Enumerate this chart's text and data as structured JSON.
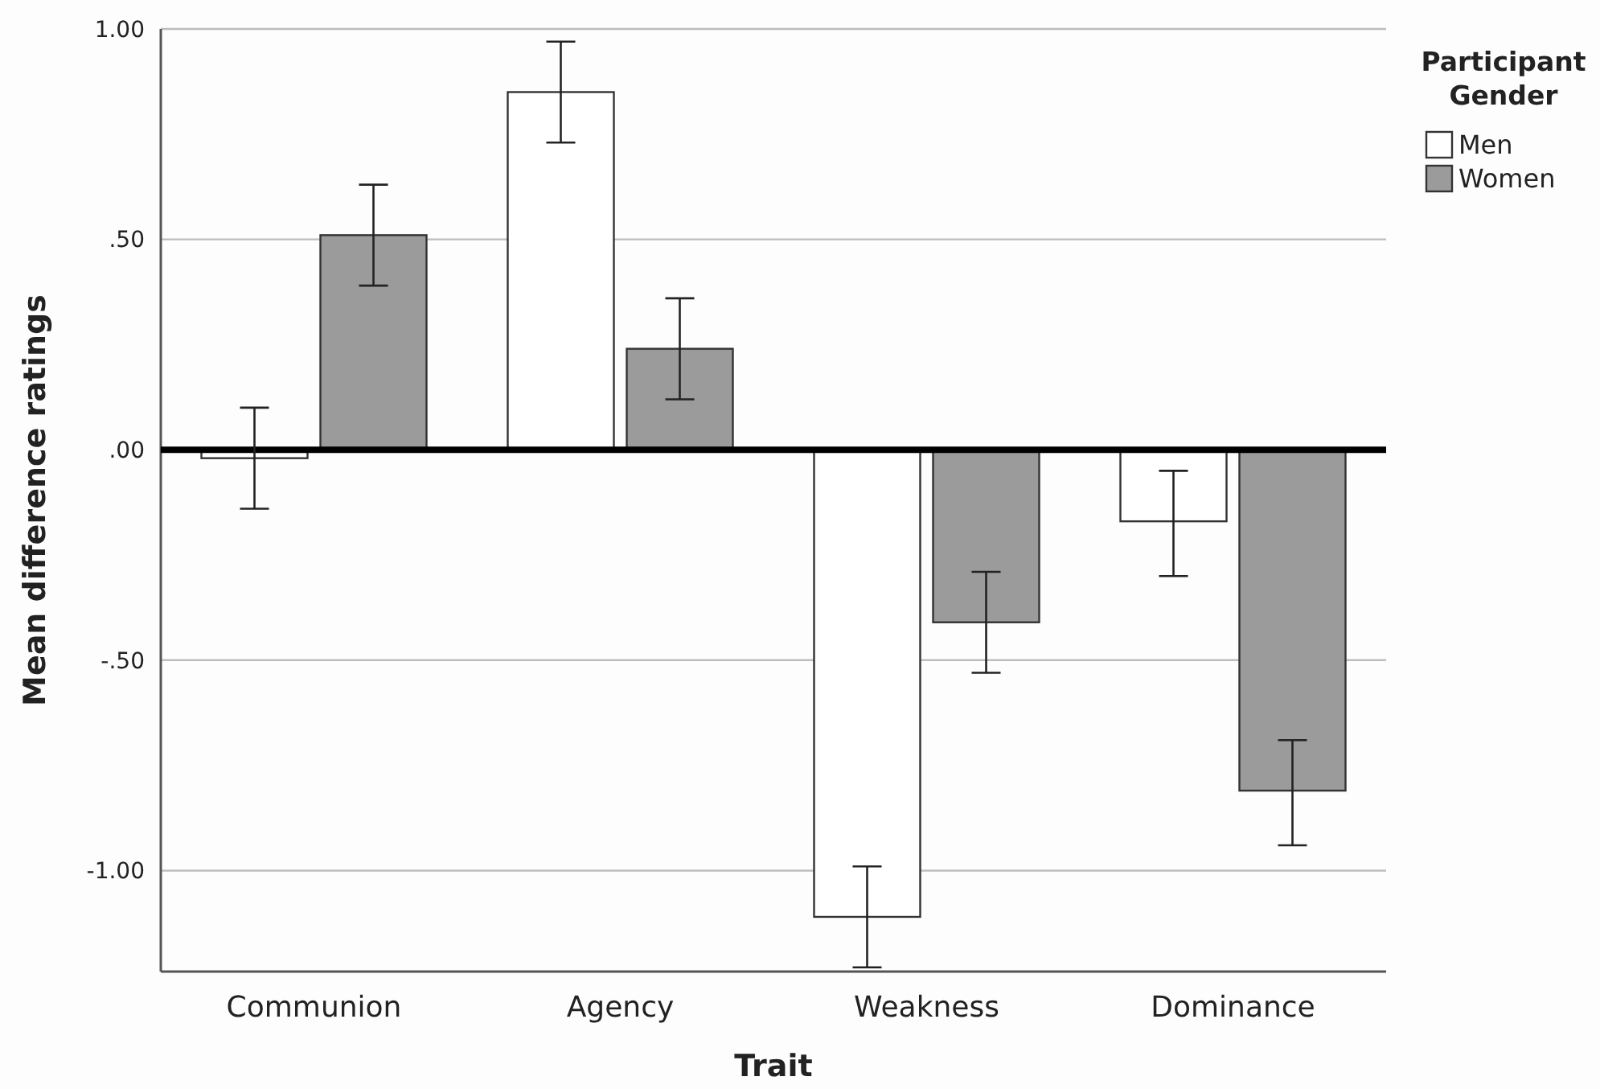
{
  "chart_data": {
    "type": "bar",
    "xlabel": "Trait",
    "ylabel": "Mean difference ratings",
    "legend_title": "Participant Gender",
    "categories": [
      "Communion",
      "Agency",
      "Weakness",
      "Dominance"
    ],
    "series": [
      {
        "name": "Men",
        "color": "#ffffff",
        "values": [
          -0.02,
          0.85,
          -1.11,
          -0.17
        ],
        "errors": [
          [
            -0.14,
            0.1
          ],
          [
            0.73,
            0.97
          ],
          [
            -1.23,
            -0.99
          ],
          [
            -0.3,
            -0.05
          ]
        ]
      },
      {
        "name": "Women",
        "color": "#9b9b9b",
        "values": [
          0.51,
          0.24,
          -0.41,
          -0.81
        ],
        "errors": [
          [
            0.39,
            0.63
          ],
          [
            0.12,
            0.36
          ],
          [
            -0.53,
            -0.29
          ],
          [
            -0.94,
            -0.69
          ]
        ]
      }
    ],
    "ylim": [
      -1.24,
      1.0
    ],
    "yticks": [
      {
        "value": -1,
        "label": "-1.00"
      },
      {
        "value": -0.5,
        "label": "-.50"
      },
      {
        "value": 0,
        "label": ".00"
      },
      {
        "value": 0.5,
        "label": ".50"
      },
      {
        "value": 1,
        "label": "1.00"
      }
    ],
    "ref_lines": [
      {
        "axis": "y",
        "value": 0,
        "color": "#000000"
      }
    ],
    "grid": "y",
    "legend": "top right"
  }
}
